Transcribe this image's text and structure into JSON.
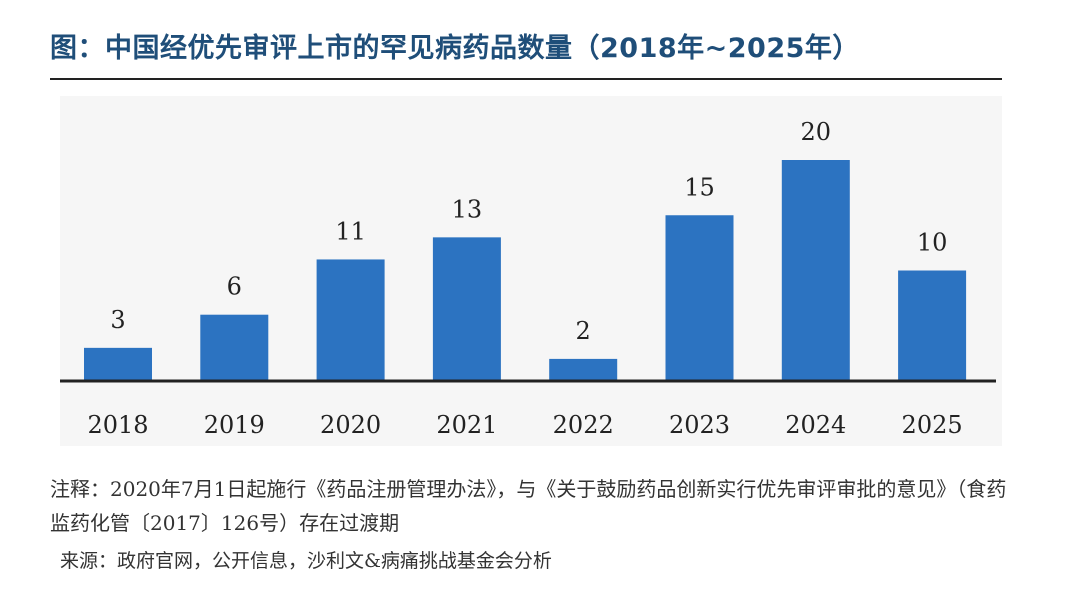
{
  "header": {
    "title": "图：中国经优先审评上市的罕见病药品数量（2018年~2025年）"
  },
  "chart_data": {
    "type": "bar",
    "title": "中国经优先审评上市的罕见病药品数量（2018年~2025年）",
    "categories": [
      "2018",
      "2019",
      "2020",
      "2021",
      "2022",
      "2023",
      "2024",
      "2025"
    ],
    "values": [
      3,
      6,
      11,
      13,
      2,
      15,
      20,
      10
    ],
    "xlabel": "",
    "ylabel": "",
    "ylim": [
      0,
      20
    ],
    "grid": false,
    "bar_color": "#2c73c1"
  },
  "footer": {
    "note": "注释：2020年7月1日起施行《药品注册管理办法》，与《关于鼓励药品创新实行优先审评审批的意见》（食药监药化管〔2017〕126号）存在过渡期",
    "source": "来源：政府官网，公开信息，沙利文&病痛挑战基金会分析"
  }
}
